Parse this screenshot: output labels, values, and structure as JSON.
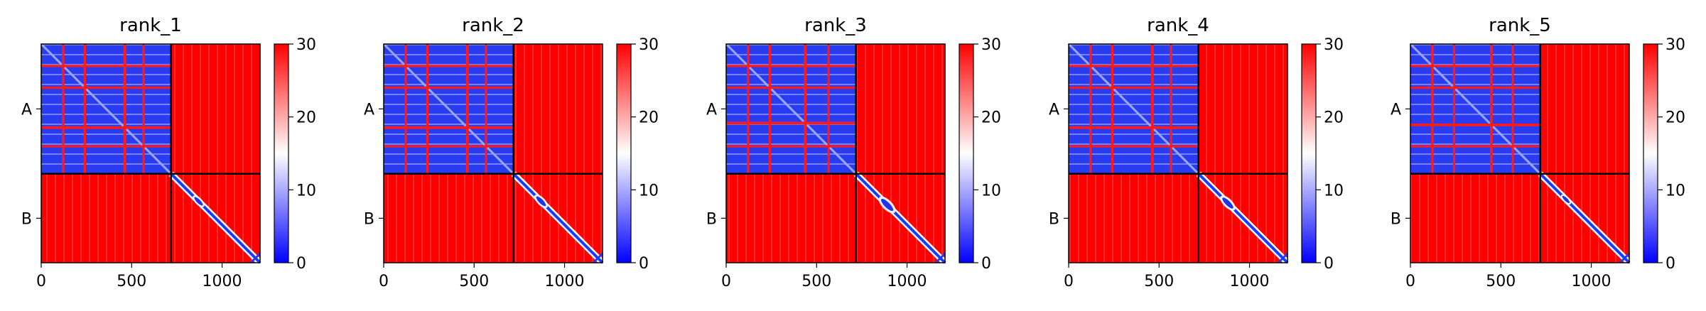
{
  "chart_data": {
    "type": "heatmap",
    "description_free": true,
    "panel_titles": [
      "rank_1",
      "rank_2",
      "rank_3",
      "rank_4",
      "rank_5"
    ],
    "x_ticks": [
      "0",
      "500",
      "1000"
    ],
    "x_tick_values": [
      0,
      500,
      1000
    ],
    "xlim": [
      0,
      1210
    ],
    "ylim": [
      0,
      1210
    ],
    "chain_boundary": 718,
    "chains": [
      {
        "label": "A",
        "range": [
          0,
          718
        ]
      },
      {
        "label": "B",
        "range": [
          718,
          1210
        ]
      }
    ],
    "colorbar": {
      "range": [
        0,
        30
      ],
      "ticks": [
        "0",
        "10",
        "20",
        "30"
      ],
      "tick_values": [
        0,
        10,
        20,
        30
      ],
      "colors": [
        "#0000ff",
        "#ffffff",
        "#ff0000"
      ]
    },
    "gap_bands_A": [
      [
        [
          115,
          128
        ],
        [
          235,
          248
        ],
        [
          455,
          470
        ],
        [
          560,
          572
        ]
      ],
      [
        [
          115,
          128
        ],
        [
          235,
          248
        ],
        [
          455,
          470
        ],
        [
          560,
          572
        ]
      ],
      [
        [
          115,
          128
        ],
        [
          235,
          248
        ],
        [
          430,
          445
        ],
        [
          560,
          572
        ]
      ],
      [
        [
          115,
          128
        ],
        [
          235,
          248
        ],
        [
          455,
          470
        ],
        [
          560,
          572
        ]
      ],
      [
        [
          115,
          128
        ],
        [
          235,
          248
        ],
        [
          440,
          455
        ],
        [
          560,
          572
        ]
      ]
    ],
    "B_diag_blob": [
      {
        "center": [
          870,
          870
        ],
        "span": 70
      },
      {
        "center": [
          870,
          870
        ],
        "span": 80
      },
      {
        "center": [
          890,
          890
        ],
        "span": 100
      },
      {
        "center": [
          880,
          880
        ],
        "span": 90
      },
      {
        "center": [
          860,
          860
        ],
        "span": 60
      }
    ]
  }
}
